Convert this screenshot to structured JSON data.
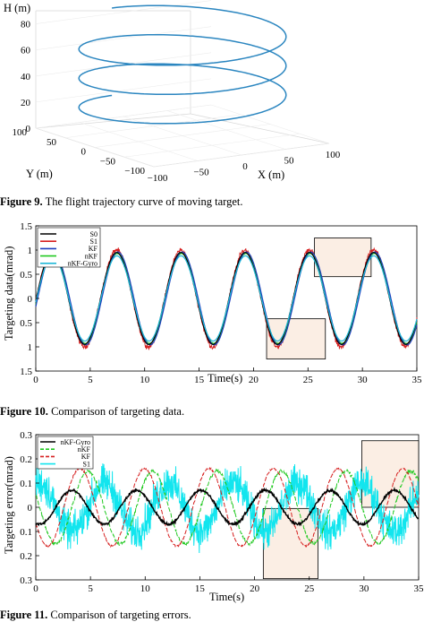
{
  "captions": {
    "fig9": {
      "label": "Figure 9.",
      "text": " The flight trajectory curve of moving target."
    },
    "fig10": {
      "label": "Figure 10.",
      "text": " Comparison of targeting data."
    },
    "fig11": {
      "label": "Figure 11.",
      "text": " Comparison of targeting errors."
    }
  },
  "chart_data": [
    {
      "type": "line3d",
      "zlabel": "H (m)",
      "xlabel": "X (m)",
      "ylabel": "Y (m)",
      "z_ticks": [
        "0",
        "20",
        "40",
        "60",
        "80"
      ],
      "y_ticks": [
        "100",
        "50",
        "0",
        "−50",
        "−100"
      ],
      "x_ticks": [
        "−100",
        "−50",
        "0",
        "50",
        "100"
      ],
      "zlim": [
        0,
        80
      ],
      "xlim": [
        -100,
        100
      ],
      "ylim": [
        -100,
        100
      ],
      "series": [
        {
          "color": "#2b86c0",
          "turns": 3,
          "radius": 100,
          "z_start": 18,
          "z_end": 85
        }
      ]
    },
    {
      "type": "line",
      "xlabel": "Time(s)",
      "ylabel": "Targeting data(mrad)",
      "xlim": [
        0,
        35
      ],
      "ylim": [
        -1.5,
        1.5
      ],
      "x_ticks": [
        "0",
        "5",
        "10",
        "15",
        "20",
        "25",
        "30",
        "35"
      ],
      "y_ticks": [
        "1.5",
        "1",
        "0.5",
        "0",
        "0.5",
        "1",
        "1.5"
      ],
      "period_s": 5.9,
      "legend": {
        "placement": "top-left",
        "entries": [
          {
            "name": "S0",
            "color": "#000000",
            "amplitude": 0.95,
            "phase_shift_s": 0.0,
            "noise": 0.0
          },
          {
            "name": "S1",
            "color": "#d62020",
            "amplitude": 1.0,
            "phase_shift_s": 0.0,
            "noise": 0.08
          },
          {
            "name": "KF",
            "color": "#1f3fbf",
            "amplitude": 0.96,
            "phase_shift_s": 0.12,
            "noise": 0.0
          },
          {
            "name": "nKF",
            "color": "#22c922",
            "amplitude": 0.93,
            "phase_shift_s": 0.08,
            "noise": 0.01
          },
          {
            "name": "nKF-Gyro",
            "color": "#20b8d8",
            "amplitude": 0.88,
            "phase_shift_s": 0.03,
            "noise": 0.0
          }
        ]
      },
      "zoom_boxes": [
        {
          "x": [
            25.6,
            30.8
          ],
          "y": [
            0.45,
            1.25
          ]
        },
        {
          "x": [
            21.2,
            26.6
          ],
          "y": [
            -1.25,
            -0.42
          ]
        }
      ]
    },
    {
      "type": "line",
      "xlabel": "Time(s)",
      "ylabel": "Targeting error(mrad)",
      "xlim": [
        0,
        35
      ],
      "ylim": [
        -0.3,
        0.3
      ],
      "x_ticks": [
        "0",
        "5",
        "10",
        "15",
        "20",
        "25",
        "30",
        "35"
      ],
      "y_ticks": [
        "0.3",
        "0.2",
        "0.1",
        "0",
        "0.1",
        "0.2",
        "0.3"
      ],
      "period_s": 5.9,
      "legend": {
        "placement": "top-left",
        "entries": [
          {
            "name": "nKF-Gyro",
            "color": "#000000",
            "amplitude": 0.07,
            "phase_deg": 180,
            "noise": 0.008
          },
          {
            "name": "nKF",
            "color": "#22c922",
            "amplitude": 0.15,
            "phase_deg": 90,
            "noise": 0.012
          },
          {
            "name": "KF",
            "color": "#d62020",
            "amplitude": 0.16,
            "phase_deg": 135,
            "noise": 0.006
          },
          {
            "name": "S1",
            "color": "#12e5ee",
            "amplitude": 0.1,
            "phase_deg": 0,
            "noise": 0.11
          }
        ]
      },
      "zoom_boxes": [
        {
          "x": [
            20.8,
            25.8
          ],
          "y": [
            -0.295,
            -0.005
          ]
        },
        {
          "x": [
            29.8,
            35
          ],
          "y": [
            0.0,
            0.275
          ]
        }
      ]
    }
  ]
}
